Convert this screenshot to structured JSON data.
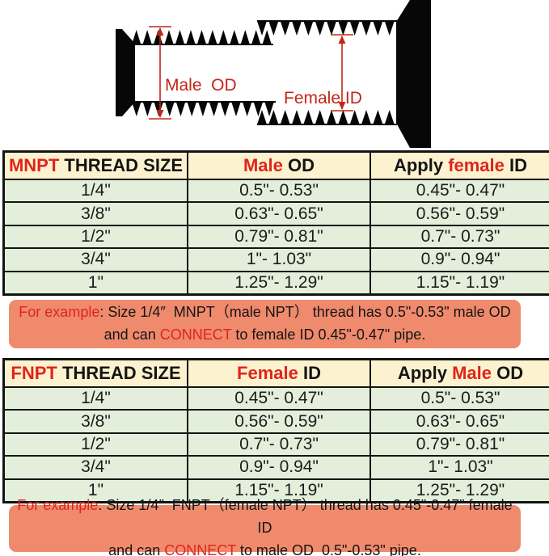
{
  "diagram": {
    "male_od_label": "Male  OD",
    "female_id_label": "Female ID"
  },
  "colors": {
    "red_text": "#e0241c",
    "diagram_red": "#c22618",
    "header_bg": "#fdf2cf",
    "row_bg": "#e3efda",
    "example_bg": "#ef8a6c"
  },
  "mnpt_table": {
    "header": {
      "col1_red": "MNPT",
      "col1_black": " THREAD SIZE",
      "col2_red": "Male",
      "col2_black": " OD",
      "col3_black1": "Apply ",
      "col3_red": "female",
      "col3_black2": " ID"
    },
    "rows": [
      [
        "1/4\"",
        "0.5\"- 0.53\"",
        "0.45\"- 0.47\""
      ],
      [
        "3/8\"",
        "0.63\"- 0.65\"",
        "0.56\"- 0.59\""
      ],
      [
        "1/2\"",
        "0.79\"- 0.81\"",
        "0.7\"- 0.73\""
      ],
      [
        "3/4\"",
        "1\"- 1.03\"",
        "0.9\"- 0.94\""
      ],
      [
        "1\"",
        "1.25\"- 1.29\"",
        "1.15\"- 1.19\""
      ]
    ]
  },
  "mnpt_example": {
    "line1_red": "For example",
    "line1_rest": ": Size 1/4″  MNPT（male NPT） thread has 0.5\"-0.53\" male OD",
    "line2_pre": "and can ",
    "line2_red": "CONNECT",
    "line2_post": " to female ID 0.45\"-0.47\" pipe."
  },
  "fnpt_table": {
    "header": {
      "col1_red": "FNPT",
      "col1_black": " THREAD SIZE",
      "col2_red": "Female",
      "col2_black": " ID",
      "col3_black1": "Apply ",
      "col3_red": "Male",
      "col3_black2": " OD"
    },
    "rows": [
      [
        "1/4\"",
        "0.45\"- 0.47\"",
        "0.5\"- 0.53\""
      ],
      [
        "3/8\"",
        "0.56\"- 0.59\"",
        "0.63\"- 0.65\""
      ],
      [
        "1/2\"",
        "0.7\"- 0.73\"",
        "0.79\"- 0.81\""
      ],
      [
        "3/4\"",
        "0.9\"- 0.94\"",
        "1\"- 1.03\""
      ],
      [
        "1\"",
        "1.15\"- 1.19\"",
        "1.25\"- 1.29\""
      ]
    ]
  },
  "fnpt_example": {
    "line1_red": "For example",
    "line1_rest": ": Size 1/4″  FNPT（female NPT） thread has 0.45\"-0.47\" female ID",
    "line2_pre": "and can ",
    "line2_red": "CONNECT",
    "line2_post": " to male OD  0.5\"-0.53\" pipe."
  }
}
